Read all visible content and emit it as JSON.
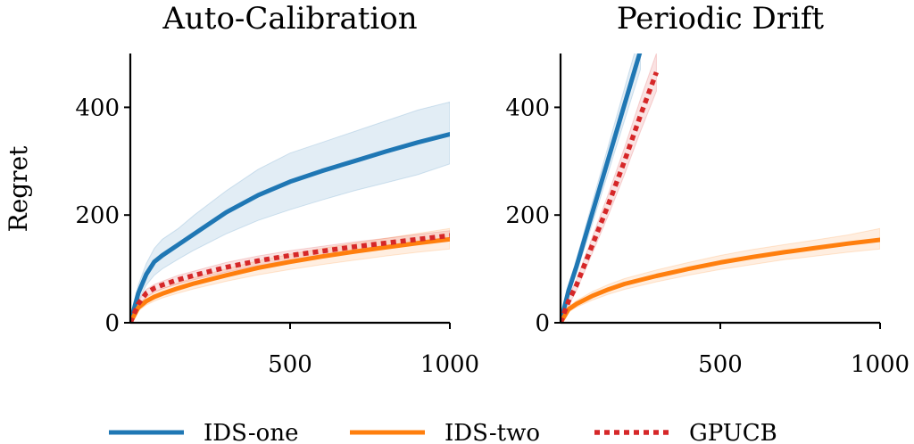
{
  "chart_data": [
    {
      "type": "line",
      "title": "Auto-Calibration",
      "xlabel": "",
      "ylabel": "Regret",
      "xlim": [
        0,
        1000
      ],
      "ylim": [
        0,
        500
      ],
      "xticks": [
        500,
        1000
      ],
      "yticks": [
        0,
        200,
        400
      ],
      "grid": false,
      "series": [
        {
          "name": "IDS-one",
          "color": "#1f77b4",
          "style": "solid",
          "x": [
            0,
            25,
            50,
            75,
            100,
            150,
            200,
            300,
            400,
            500,
            600,
            700,
            800,
            900,
            1000
          ],
          "y": [
            0,
            55,
            90,
            113,
            125,
            145,
            165,
            205,
            237,
            262,
            282,
            300,
            318,
            335,
            350
          ],
          "lower": [
            0,
            40,
            70,
            88,
            100,
            118,
            135,
            165,
            190,
            210,
            228,
            245,
            260,
            275,
            295
          ],
          "upper": [
            0,
            70,
            110,
            138,
            155,
            175,
            200,
            245,
            285,
            315,
            335,
            355,
            375,
            395,
            410
          ]
        },
        {
          "name": "IDS-two",
          "color": "#ff7f0e",
          "style": "solid",
          "x": [
            0,
            25,
            50,
            75,
            100,
            150,
            200,
            300,
            400,
            500,
            600,
            700,
            800,
            900,
            1000
          ],
          "y": [
            0,
            28,
            40,
            48,
            54,
            64,
            73,
            88,
            102,
            113,
            123,
            132,
            140,
            148,
            155
          ],
          "lower": [
            0,
            22,
            33,
            40,
            46,
            55,
            63,
            77,
            89,
            99,
            108,
            116,
            124,
            131,
            137
          ],
          "upper": [
            0,
            34,
            47,
            56,
            63,
            74,
            84,
            100,
            115,
            127,
            138,
            148,
            157,
            166,
            175
          ]
        },
        {
          "name": "GPUCB",
          "color": "#d62728",
          "style": "dotted",
          "x": [
            0,
            25,
            50,
            75,
            100,
            150,
            200,
            300,
            400,
            500,
            600,
            700,
            800,
            900,
            1000
          ],
          "y": [
            0,
            35,
            55,
            64,
            70,
            80,
            88,
            103,
            115,
            125,
            133,
            141,
            148,
            155,
            162
          ],
          "lower": [
            0,
            30,
            48,
            57,
            63,
            72,
            80,
            94,
            106,
            116,
            124,
            132,
            139,
            146,
            153
          ],
          "upper": [
            0,
            40,
            62,
            71,
            77,
            88,
            96,
            112,
            124,
            134,
            142,
            150,
            157,
            164,
            171
          ]
        }
      ]
    },
    {
      "type": "line",
      "title": "Periodic Drift",
      "xlabel": "",
      "ylabel": "",
      "xlim": [
        0,
        1000
      ],
      "ylim": [
        0,
        500
      ],
      "xticks": [
        500,
        1000
      ],
      "yticks": [
        0,
        200,
        400
      ],
      "grid": false,
      "series": [
        {
          "name": "IDS-one",
          "color": "#1f77b4",
          "style": "solid",
          "x": [
            0,
            25,
            50,
            100,
            150,
            200,
            250
          ],
          "y": [
            0,
            60,
            105,
            205,
            305,
            405,
            505
          ],
          "lower": [
            0,
            50,
            92,
            185,
            280,
            375,
            470
          ],
          "upper": [
            0,
            70,
            118,
            225,
            330,
            435,
            540
          ]
        },
        {
          "name": "IDS-two",
          "color": "#ff7f0e",
          "style": "solid",
          "x": [
            0,
            25,
            50,
            100,
            150,
            200,
            300,
            400,
            500,
            600,
            700,
            800,
            900,
            1000
          ],
          "y": [
            0,
            25,
            35,
            50,
            62,
            72,
            87,
            100,
            112,
            122,
            131,
            139,
            147,
            154
          ],
          "lower": [
            0,
            20,
            29,
            42,
            53,
            62,
            76,
            88,
            99,
            108,
            117,
            124,
            131,
            137
          ],
          "upper": [
            0,
            30,
            41,
            58,
            71,
            82,
            98,
            112,
            125,
            136,
            145,
            154,
            163,
            175
          ]
        },
        {
          "name": "GPUCB",
          "color": "#d62728",
          "style": "dotted",
          "x": [
            0,
            25,
            50,
            100,
            150,
            200,
            250,
            300
          ],
          "y": [
            0,
            40,
            70,
            145,
            220,
            300,
            385,
            465
          ],
          "lower": [
            0,
            32,
            60,
            130,
            200,
            275,
            355,
            430
          ],
          "upper": [
            0,
            48,
            80,
            160,
            240,
            325,
            415,
            500
          ]
        }
      ]
    }
  ],
  "legend": {
    "placement": "bottom",
    "items": [
      {
        "label": "IDS-one",
        "color": "#1f77b4",
        "style": "solid"
      },
      {
        "label": "IDS-two",
        "color": "#ff7f0e",
        "style": "solid"
      },
      {
        "label": "GPUCB",
        "color": "#d62728",
        "style": "dotted"
      }
    ]
  }
}
